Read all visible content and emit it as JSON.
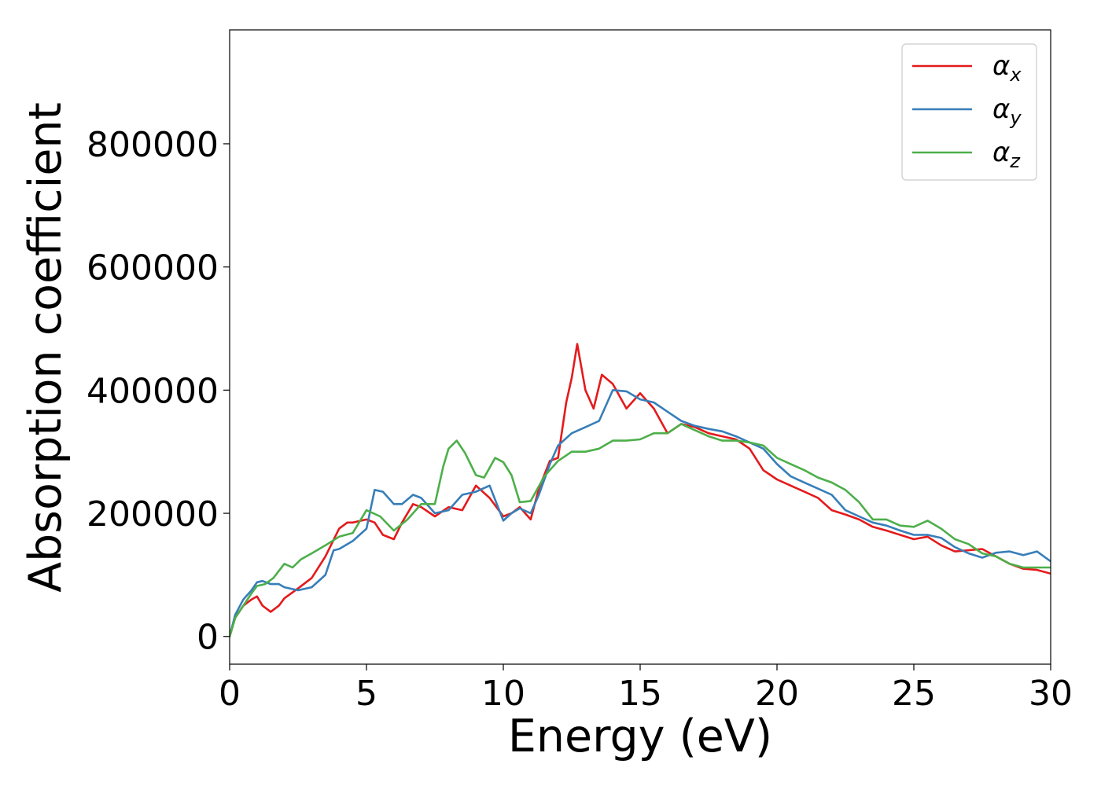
{
  "chart_data": {
    "type": "line",
    "title": "",
    "xlabel": "Energy (eV)",
    "ylabel": "Absorption coefficient",
    "xlim": [
      0,
      30
    ],
    "ylim": [
      -45000,
      985000
    ],
    "xticks": [
      0,
      5,
      10,
      15,
      20,
      25,
      30
    ],
    "yticks": [
      0,
      200000,
      400000,
      600000,
      800000
    ],
    "grid": false,
    "legend_position": "top-right",
    "series": [
      {
        "name": "α",
        "subscript": "x",
        "color": "#e41a1c",
        "x": [
          0,
          0.2,
          0.5,
          0.8,
          1.0,
          1.2,
          1.5,
          1.8,
          2.0,
          2.5,
          3.0,
          3.5,
          4.0,
          4.3,
          4.5,
          5.0,
          5.3,
          5.6,
          6.0,
          6.3,
          6.7,
          7.0,
          7.5,
          8.0,
          8.5,
          9.0,
          9.5,
          10.0,
          10.3,
          10.6,
          11.0,
          11.3,
          11.7,
          12.0,
          12.3,
          12.5,
          12.7,
          13.0,
          13.3,
          13.6,
          14.0,
          14.5,
          15.0,
          15.5,
          16.0,
          16.5,
          17.0,
          17.5,
          18.0,
          18.5,
          19.0,
          19.5,
          20.0,
          20.5,
          21.0,
          21.5,
          22.0,
          22.5,
          23.0,
          23.5,
          24.0,
          24.5,
          25.0,
          25.5,
          26.0,
          26.5,
          27.0,
          27.5,
          28.0,
          28.5,
          29.0,
          29.5,
          30.0
        ],
        "y": [
          0,
          30000,
          50000,
          60000,
          65000,
          50000,
          40000,
          50000,
          62000,
          78000,
          95000,
          130000,
          175000,
          185000,
          185000,
          190000,
          185000,
          165000,
          158000,
          185000,
          215000,
          210000,
          195000,
          210000,
          205000,
          245000,
          225000,
          195000,
          200000,
          210000,
          190000,
          240000,
          285000,
          290000,
          380000,
          420000,
          475000,
          400000,
          370000,
          425000,
          410000,
          370000,
          395000,
          370000,
          330000,
          345000,
          340000,
          330000,
          325000,
          320000,
          305000,
          270000,
          255000,
          245000,
          235000,
          225000,
          205000,
          198000,
          190000,
          178000,
          172000,
          165000,
          158000,
          162000,
          148000,
          138000,
          140000,
          142000,
          130000,
          118000,
          110000,
          108000,
          102000
        ]
      },
      {
        "name": "α",
        "subscript": "y",
        "color": "#377eb8",
        "x": [
          0,
          0.2,
          0.5,
          0.8,
          1.0,
          1.2,
          1.5,
          1.8,
          2.0,
          2.5,
          3.0,
          3.5,
          3.8,
          4.0,
          4.5,
          5.0,
          5.3,
          5.6,
          6.0,
          6.3,
          6.7,
          7.0,
          7.5,
          8.0,
          8.5,
          9.0,
          9.5,
          10.0,
          10.3,
          10.6,
          11.0,
          11.3,
          11.7,
          12.0,
          12.5,
          13.0,
          13.5,
          14.0,
          14.5,
          15.0,
          15.5,
          16.0,
          16.5,
          17.0,
          17.5,
          18.0,
          18.5,
          19.0,
          19.5,
          20.0,
          20.5,
          21.0,
          21.5,
          22.0,
          22.5,
          23.0,
          23.5,
          24.0,
          24.5,
          25.0,
          25.5,
          26.0,
          26.5,
          27.0,
          27.5,
          28.0,
          28.5,
          29.0,
          29.5,
          30.0
        ],
        "y": [
          0,
          35000,
          60000,
          75000,
          88000,
          90000,
          85000,
          85000,
          80000,
          75000,
          80000,
          100000,
          140000,
          142000,
          155000,
          175000,
          238000,
          235000,
          215000,
          215000,
          230000,
          225000,
          200000,
          205000,
          230000,
          235000,
          245000,
          188000,
          200000,
          208000,
          200000,
          230000,
          280000,
          310000,
          330000,
          340000,
          350000,
          400000,
          398000,
          385000,
          380000,
          365000,
          350000,
          342000,
          337000,
          333000,
          325000,
          315000,
          305000,
          280000,
          260000,
          250000,
          240000,
          230000,
          205000,
          195000,
          185000,
          180000,
          172000,
          165000,
          165000,
          160000,
          145000,
          135000,
          128000,
          136000,
          138000,
          132000,
          138000,
          122000
        ]
      },
      {
        "name": "α",
        "subscript": "z",
        "color": "#4daf4a",
        "x": [
          0,
          0.2,
          0.5,
          0.8,
          1.0,
          1.3,
          1.6,
          2.0,
          2.3,
          2.6,
          3.0,
          3.5,
          4.0,
          4.5,
          5.0,
          5.5,
          6.0,
          6.5,
          7.0,
          7.5,
          7.8,
          8.0,
          8.3,
          8.6,
          9.0,
          9.3,
          9.7,
          10.0,
          10.3,
          10.6,
          11.0,
          11.5,
          12.0,
          12.5,
          13.0,
          13.5,
          14.0,
          14.5,
          15.0,
          15.5,
          16.0,
          16.5,
          17.0,
          17.5,
          18.0,
          18.5,
          19.0,
          19.5,
          20.0,
          20.5,
          21.0,
          21.5,
          22.0,
          22.5,
          23.0,
          23.5,
          24.0,
          24.5,
          25.0,
          25.5,
          26.0,
          26.5,
          27.0,
          27.5,
          28.0,
          28.5,
          29.0,
          29.5,
          30.0
        ],
        "y": [
          0,
          30000,
          50000,
          70000,
          82000,
          85000,
          95000,
          118000,
          112000,
          125000,
          135000,
          148000,
          162000,
          168000,
          205000,
          195000,
          172000,
          190000,
          215000,
          215000,
          275000,
          305000,
          318000,
          298000,
          262000,
          258000,
          290000,
          283000,
          262000,
          218000,
          220000,
          260000,
          285000,
          300000,
          300000,
          305000,
          318000,
          318000,
          320000,
          330000,
          330000,
          345000,
          335000,
          325000,
          318000,
          318000,
          315000,
          310000,
          290000,
          280000,
          270000,
          258000,
          250000,
          238000,
          218000,
          190000,
          190000,
          180000,
          178000,
          188000,
          175000,
          158000,
          150000,
          135000,
          130000,
          118000,
          112000,
          112000,
          112000
        ]
      }
    ]
  }
}
